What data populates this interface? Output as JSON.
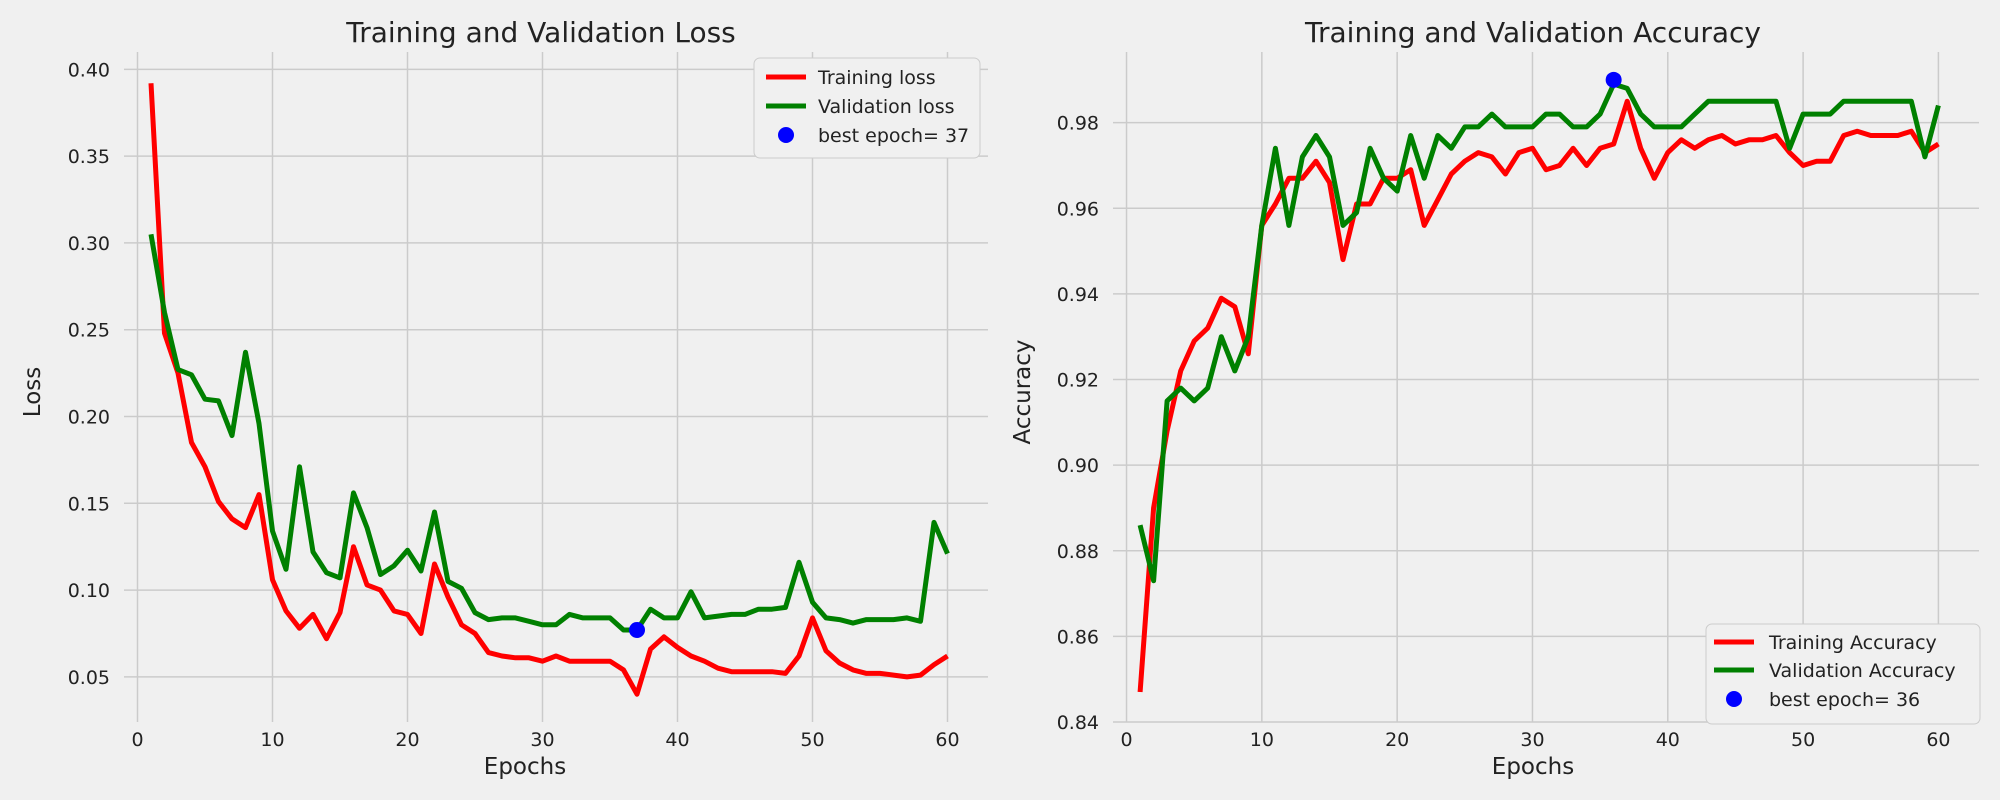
{
  "chart_data": [
    {
      "type": "line",
      "title": "Training and Validation Loss",
      "xlabel": "Epochs",
      "ylabel": "Loss",
      "xlim": [
        -1,
        63
      ],
      "ylim": [
        0.024,
        0.41
      ],
      "xticks": [
        0,
        10,
        20,
        30,
        40,
        50,
        60
      ],
      "xtick_labels": [
        "0",
        "10",
        "20",
        "30",
        "40",
        "50",
        "60"
      ],
      "yticks": [
        0.05,
        0.1,
        0.15,
        0.2,
        0.25,
        0.3,
        0.35,
        0.4
      ],
      "ytick_labels": [
        "0.05",
        "0.10",
        "0.15",
        "0.20",
        "0.25",
        "0.30",
        "0.35",
        "0.40"
      ],
      "grid": true,
      "legend_position": "top-right",
      "x": [
        1,
        2,
        3,
        4,
        5,
        6,
        7,
        8,
        9,
        10,
        11,
        12,
        13,
        14,
        15,
        16,
        17,
        18,
        19,
        20,
        21,
        22,
        23,
        24,
        25,
        26,
        27,
        28,
        29,
        30,
        31,
        32,
        33,
        34,
        35,
        36,
        37,
        38,
        39,
        40,
        41,
        42,
        43,
        44,
        45,
        46,
        47,
        48,
        49,
        50,
        51,
        52,
        53,
        54,
        55,
        56,
        57,
        58,
        59,
        60
      ],
      "series": [
        {
          "name": "Training loss",
          "color": "#ff0000",
          "values": [
            0.392,
            0.248,
            0.225,
            0.185,
            0.171,
            0.151,
            0.141,
            0.136,
            0.155,
            0.106,
            0.088,
            0.078,
            0.086,
            0.072,
            0.087,
            0.125,
            0.103,
            0.1,
            0.088,
            0.086,
            0.075,
            0.115,
            0.096,
            0.08,
            0.075,
            0.064,
            0.062,
            0.061,
            0.061,
            0.059,
            0.062,
            0.059,
            0.059,
            0.059,
            0.059,
            0.054,
            0.04,
            0.066,
            0.073,
            0.067,
            0.062,
            0.059,
            0.055,
            0.053,
            0.053,
            0.053,
            0.053,
            0.052,
            0.062,
            0.084,
            0.065,
            0.058,
            0.054,
            0.052,
            0.052,
            0.051,
            0.05,
            0.051,
            0.057,
            0.062
          ]
        },
        {
          "name": "Validation loss",
          "color": "#008000",
          "values": [
            0.305,
            0.26,
            0.227,
            0.224,
            0.21,
            0.209,
            0.189,
            0.237,
            0.196,
            0.134,
            0.112,
            0.171,
            0.122,
            0.11,
            0.107,
            0.156,
            0.136,
            0.109,
            0.114,
            0.123,
            0.111,
            0.145,
            0.105,
            0.101,
            0.087,
            0.083,
            0.084,
            0.084,
            0.082,
            0.08,
            0.08,
            0.086,
            0.084,
            0.084,
            0.084,
            0.077,
            0.077,
            0.089,
            0.084,
            0.084,
            0.099,
            0.084,
            0.085,
            0.086,
            0.086,
            0.089,
            0.089,
            0.09,
            0.116,
            0.093,
            0.084,
            0.083,
            0.081,
            0.083,
            0.083,
            0.083,
            0.084,
            0.082,
            0.139,
            0.121
          ]
        }
      ],
      "best_point": {
        "name": "best epoch= 37",
        "x": 37,
        "y": 0.077,
        "color": "#0000ff"
      }
    },
    {
      "type": "line",
      "title": "Training and Validation Accuracy",
      "xlabel": "Epochs",
      "ylabel": "Accuracy",
      "xlim": [
        -1,
        63
      ],
      "ylim": [
        0.84,
        0.9965
      ],
      "xticks": [
        0,
        10,
        20,
        30,
        40,
        50,
        60
      ],
      "xtick_labels": [
        "0",
        "10",
        "20",
        "30",
        "40",
        "50",
        "60"
      ],
      "yticks": [
        0.84,
        0.86,
        0.88,
        0.9,
        0.92,
        0.94,
        0.96,
        0.98
      ],
      "ytick_labels": [
        "0.84",
        "0.86",
        "0.88",
        "0.90",
        "0.92",
        "0.94",
        "0.96",
        "0.98"
      ],
      "grid": true,
      "legend_position": "bottom-right",
      "x": [
        1,
        2,
        3,
        4,
        5,
        6,
        7,
        8,
        9,
        10,
        11,
        12,
        13,
        14,
        15,
        16,
        17,
        18,
        19,
        20,
        21,
        22,
        23,
        24,
        25,
        26,
        27,
        28,
        29,
        30,
        31,
        32,
        33,
        34,
        35,
        36,
        37,
        38,
        39,
        40,
        41,
        42,
        43,
        44,
        45,
        46,
        47,
        48,
        49,
        50,
        51,
        52,
        53,
        54,
        55,
        56,
        57,
        58,
        59,
        60
      ],
      "series": [
        {
          "name": "Training Accuracy",
          "color": "#ff0000",
          "values": [
            0.847,
            0.89,
            0.908,
            0.922,
            0.929,
            0.932,
            0.939,
            0.937,
            0.926,
            0.956,
            0.961,
            0.967,
            0.967,
            0.971,
            0.966,
            0.948,
            0.961,
            0.961,
            0.967,
            0.967,
            0.969,
            0.956,
            0.962,
            0.968,
            0.971,
            0.973,
            0.972,
            0.968,
            0.973,
            0.974,
            0.969,
            0.97,
            0.974,
            0.97,
            0.974,
            0.975,
            0.985,
            0.974,
            0.967,
            0.973,
            0.976,
            0.974,
            0.976,
            0.977,
            0.975,
            0.976,
            0.976,
            0.977,
            0.973,
            0.97,
            0.971,
            0.971,
            0.977,
            0.978,
            0.977,
            0.977,
            0.977,
            0.978,
            0.973,
            0.975
          ]
        },
        {
          "name": "Validation Accuracy",
          "color": "#008000",
          "values": [
            0.886,
            0.873,
            0.915,
            0.918,
            0.915,
            0.918,
            0.93,
            0.922,
            0.93,
            0.956,
            0.974,
            0.956,
            0.972,
            0.977,
            0.972,
            0.956,
            0.959,
            0.974,
            0.967,
            0.964,
            0.977,
            0.967,
            0.977,
            0.974,
            0.979,
            0.979,
            0.982,
            0.979,
            0.979,
            0.979,
            0.982,
            0.982,
            0.979,
            0.979,
            0.982,
            0.989,
            0.988,
            0.982,
            0.979,
            0.979,
            0.979,
            0.982,
            0.985,
            0.985,
            0.985,
            0.985,
            0.985,
            0.985,
            0.974,
            0.982,
            0.982,
            0.982,
            0.985,
            0.985,
            0.985,
            0.985,
            0.985,
            0.985,
            0.972,
            0.984
          ]
        }
      ],
      "best_point": {
        "name": "best epoch= 36",
        "x": 36,
        "y": 0.99,
        "color": "#0000ff"
      }
    }
  ]
}
